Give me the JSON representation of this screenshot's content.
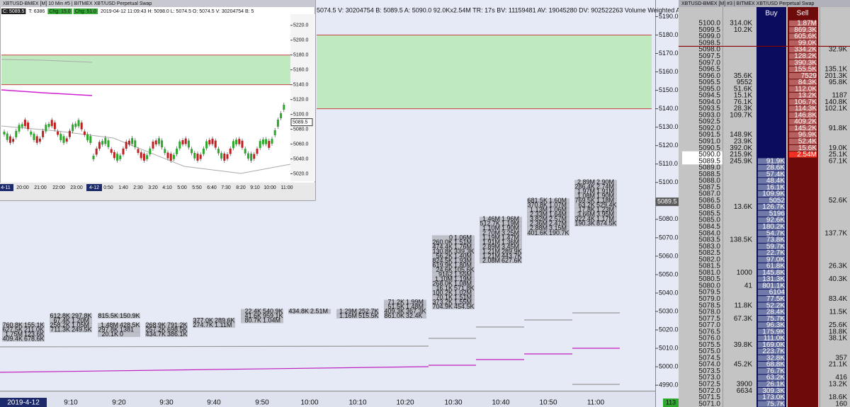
{
  "main": {
    "header": "5074.5 V: 30204754 B: 5089.5 A: 5090.0 92.0Kx2.54M TR: 17s BV: 11159481 AV: 19045280 DV: 902522263 Volume Weighted A",
    "ylim": [
      4987,
      5199
    ],
    "price_ticks": [
      {
        "value": 5190,
        "label": "5190.0"
      },
      {
        "value": 5180,
        "label": "5180.0"
      },
      {
        "value": 5170,
        "label": "5170.0"
      },
      {
        "value": 5160,
        "label": "5160.0"
      },
      {
        "value": 5150,
        "label": "5150.0"
      },
      {
        "value": 5140,
        "label": "5140.0"
      },
      {
        "value": 5130,
        "label": "5130.0"
      },
      {
        "value": 5120,
        "label": "5120.0"
      },
      {
        "value": 5110,
        "label": "5110.0"
      },
      {
        "value": 5100,
        "label": "5100.0"
      },
      {
        "value": 5090,
        "label": "5090.0"
      },
      {
        "value": 5080,
        "label": "5080.0"
      },
      {
        "value": 5070,
        "label": "5070.0"
      },
      {
        "value": 5060,
        "label": "5060.0"
      },
      {
        "value": 5050,
        "label": "5050.0"
      },
      {
        "value": 5040,
        "label": "5040.0"
      },
      {
        "value": 5030,
        "label": "5030.0"
      },
      {
        "value": 5020,
        "label": "5020.0"
      },
      {
        "value": 5010,
        "label": "5010.0"
      },
      {
        "value": 5000,
        "label": "5000.0"
      },
      {
        "value": 4990,
        "label": "4990.0"
      }
    ],
    "last_price": {
      "value": 5089.5,
      "label": "5089.5"
    },
    "zone": [
      5140,
      5180
    ],
    "times": [
      "2019-4-12",
      "9:10",
      "9:20",
      "9:30",
      "9:40",
      "9:50",
      "10:00",
      "10:10",
      "10:20",
      "10:30",
      "10:40",
      "10:50",
      "11:00"
    ],
    "bar_count": "113",
    "footprint": [
      [
        [
          5022.5,
          "760.8K",
          "155.1K"
        ],
        [
          5020,
          "627.5K",
          "211.0K"
        ],
        [
          5017.5,
          "1.75M",
          "123.6K"
        ],
        [
          5015,
          "409.4K",
          "678.6K"
        ]
      ],
      [
        [
          5027.5,
          "612.8K",
          "297.8K"
        ],
        [
          5025,
          "67.4K",
          "1.20M"
        ],
        [
          5022.5,
          "258.2K",
          "1.05M"
        ],
        [
          5020,
          "711.3K",
          "249.5K"
        ]
      ],
      [
        [
          5027.5,
          "815.5K",
          "150.9K"
        ],
        [
          5022.5,
          "1.48M",
          "428.5K"
        ],
        [
          5020,
          "297.8K",
          "1381"
        ],
        [
          5017.5,
          "20.1K",
          "0"
        ]
      ],
      [
        [
          5022.5,
          "268.9K",
          "791.2K"
        ],
        [
          5020,
          "257.2K",
          "698.5K"
        ],
        [
          5017.5,
          "434.7K",
          "386.1K"
        ]
      ],
      [
        [
          5025,
          "377.0K",
          "289.6K"
        ],
        [
          5022.5,
          "274.7K",
          "1.11M"
        ]
      ],
      [
        [
          5030,
          "22.4K",
          "540.9K"
        ],
        [
          5027.5,
          "41.6K",
          "959.1K"
        ],
        [
          5025,
          "80.7K",
          "1.04M"
        ]
      ],
      [
        [
          5030,
          "434.8K",
          "2.51M"
        ]
      ],
      [
        [
          5030,
          "1.29M",
          "252.7K"
        ],
        [
          5027.5,
          "1.16M",
          "515.5K"
        ]
      ],
      [
        [
          5035,
          "71.2K",
          "1.99M"
        ],
        [
          5032.5,
          "51.5K",
          "1.48M"
        ],
        [
          5030,
          "409.3K",
          "367.3K"
        ],
        [
          5027.5,
          "861.0K",
          "32.4K"
        ]
      ],
      [
        [
          5070,
          "0",
          "1.06M"
        ],
        [
          5067.5,
          "260.0K",
          "1.51M"
        ],
        [
          5065,
          "474.4K",
          "1.76M"
        ],
        [
          5062.5,
          "130.8K",
          "339.3K"
        ],
        [
          5060,
          "56.2K",
          "1.40M"
        ],
        [
          5057.5,
          "824.5K",
          "1.93M"
        ],
        [
          5055,
          "619.9K",
          "1.80M"
        ],
        [
          5052.5,
          "24.6K",
          "105.6K"
        ],
        [
          5050,
          "9162",
          "1.55M"
        ],
        [
          5047.5,
          "1.10M",
          "1.19M"
        ],
        [
          5045,
          "268.0K",
          "1.08M"
        ],
        [
          5042.5,
          "16.1K",
          "571.8K"
        ],
        [
          5040,
          "100.2K",
          "1.02M"
        ],
        [
          5037.5,
          "70.1K",
          "1.51M"
        ],
        [
          5035,
          "373.2K",
          "1.55M"
        ],
        [
          5032.5,
          "704.9K",
          "454.5K"
        ]
      ],
      [
        [
          5080,
          "1.46M",
          "1.96M"
        ],
        [
          5077.5,
          "512.7K",
          "1.19M"
        ],
        [
          5075,
          "1.10M",
          "1.90M"
        ],
        [
          5072.5,
          "2.70M",
          "3.25M"
        ],
        [
          5070,
          "1.19M",
          "1.47M"
        ],
        [
          5067.5,
          "1.91M",
          "1.36M"
        ],
        [
          5065,
          "2.89M",
          "3.45M"
        ],
        [
          5062.5,
          "1.21M",
          "289.9K"
        ],
        [
          5060,
          "1.21M",
          "443.7K"
        ],
        [
          5057.5,
          "2.08M",
          "627.6K"
        ]
      ],
      [
        [
          5090,
          "681.5K",
          "1.60M"
        ],
        [
          5087.5,
          "370.8K",
          "1.07M"
        ],
        [
          5085,
          "1.13M",
          "1.06M"
        ],
        [
          5082.5,
          "2.33M",
          "1.64M"
        ],
        [
          5080,
          "3.82M",
          "2.57M"
        ],
        [
          5077.5,
          "2.36M",
          "2.47M"
        ],
        [
          5075,
          "2.88M",
          "3.15M"
        ],
        [
          5072.5,
          "401.6K",
          "190.7K"
        ]
      ],
      [
        [
          5100,
          "2.89M",
          "2.90M"
        ],
        [
          5097.5,
          "286.4K",
          "2.74M"
        ],
        [
          5095,
          "1.97M",
          "1.91M"
        ],
        [
          5092.5,
          "1.08M",
          "1.90M"
        ],
        [
          5090,
          "769.5K",
          "1.18M"
        ],
        [
          5087.5,
          "63.2K",
          "529.4K"
        ],
        [
          5085,
          "17.8K",
          "1.23M"
        ],
        [
          5082.5,
          "3.66M",
          "3.95M"
        ],
        [
          5080,
          "322.4K",
          "1.17M"
        ],
        [
          5077.5,
          "190.3K",
          "874.5K"
        ]
      ]
    ]
  },
  "inset": {
    "title": "XBTUSD-BMEX [M]  10 Min  #5 | BITMEX XBT/USD Perpetual Swap",
    "stats": [
      "C: 5089.5",
      "T: 6386",
      "Chg: 15.0",
      "Chg: 51.0",
      "2019-04-12 11:09:43 H: 5098.0 L: 5074.5 O: 5074.5 V: 30204754 B: 5"
    ],
    "ylim": [
      5010,
      5235
    ],
    "price_ticks": [
      {
        "value": 5220,
        "label": "5220.0"
      },
      {
        "value": 5200,
        "label": "5200.0"
      },
      {
        "value": 5180,
        "label": "5180.0"
      },
      {
        "value": 5160,
        "label": "5160.0"
      },
      {
        "value": 5140,
        "label": "5140.0"
      },
      {
        "value": 5120,
        "label": "5120.0"
      },
      {
        "value": 5100,
        "label": "5100.0"
      },
      {
        "value": 5080,
        "label": "5080.0"
      },
      {
        "value": 5060,
        "label": "5060.0"
      },
      {
        "value": 5040,
        "label": "5040.0"
      },
      {
        "value": 5020,
        "label": "5020.0"
      }
    ],
    "last_price": {
      "value": 5089.5,
      "label": "5089.5"
    },
    "zone": [
      5140,
      5180
    ],
    "times": [
      "4-11",
      "20:00",
      "21:00",
      "22:00",
      "23:00",
      "4-12",
      "0:50",
      "1:40",
      "2:30",
      "3:20",
      "4:10",
      "5:00",
      "5:50",
      "6:40",
      "7:30",
      "8:20",
      "9:10",
      "10:00",
      "11:00"
    ]
  },
  "dom": {
    "title": "XBTUSD-BMEX [M]  #3 | BITMEX XBT/USD Perpetual Swap",
    "buy_header": "Buy",
    "sell_header": "Sell",
    "rows": [
      [
        "5100.0",
        "314.0K",
        null,
        "1.87M",
        null
      ],
      [
        "5099.5",
        "10.2K",
        null,
        "869.3K",
        null
      ],
      [
        "5099.0",
        null,
        null,
        "605.6K",
        null
      ],
      [
        "5098.5",
        null,
        null,
        "99.0K",
        null
      ],
      [
        "5098.0",
        null,
        null,
        "334.2K",
        "32.9K"
      ],
      [
        "5097.5",
        null,
        null,
        "128.2K",
        null
      ],
      [
        "5097.0",
        null,
        null,
        "390.3K",
        null
      ],
      [
        "5096.5",
        null,
        null,
        "155.5K",
        "135.1K"
      ],
      [
        "5096.0",
        "35.6K",
        null,
        "7529",
        "201.3K"
      ],
      [
        "5095.5",
        "9552",
        null,
        "84.3K",
        "95.8K"
      ],
      [
        "5095.0",
        "51.6K",
        null,
        "112.0K",
        null
      ],
      [
        "5094.5",
        "15.1K",
        null,
        "13.2K",
        "1187"
      ],
      [
        "5094.0",
        "76.1K",
        null,
        "106.7K",
        "140.8K"
      ],
      [
        "5093.5",
        "28.3K",
        null,
        "114.3K",
        "102.1K"
      ],
      [
        "5093.0",
        "109.7K",
        null,
        "146.8K",
        null
      ],
      [
        "5092.5",
        null,
        null,
        "409.2K",
        null
      ],
      [
        "5092.0",
        null,
        null,
        "145.2K",
        "91.8K"
      ],
      [
        "5091.5",
        "148.9K",
        null,
        "96.9K",
        null
      ],
      [
        "5091.0",
        "23.9K",
        null,
        "52.4K",
        null
      ],
      [
        "5090.5",
        "392.0K",
        null,
        "15.6K",
        "19.0K"
      ],
      [
        "5090.0",
        "215.9K",
        null,
        "2.54M",
        "25.1K"
      ],
      [
        "5089.5",
        "245.9K",
        "91.9K",
        null,
        "67.1K"
      ],
      [
        "5089.0",
        null,
        "28.6K",
        null,
        null
      ],
      [
        "5088.5",
        null,
        "57.4K",
        null,
        null
      ],
      [
        "5088.0",
        null,
        "48.4K",
        null,
        null
      ],
      [
        "5087.5",
        null,
        "16.1K",
        null,
        null
      ],
      [
        "5087.0",
        null,
        "109.9K",
        null,
        null
      ],
      [
        "5086.5",
        null,
        "5052",
        null,
        "52.6K"
      ],
      [
        "5086.0",
        "13.6K",
        "126.7K",
        null,
        null
      ],
      [
        "5085.5",
        null,
        "5196",
        null,
        null
      ],
      [
        "5085.0",
        null,
        "92.6K",
        null,
        null
      ],
      [
        "5084.5",
        null,
        "180.2K",
        null,
        null
      ],
      [
        "5084.0",
        null,
        "54.7K",
        null,
        "137.7K"
      ],
      [
        "5083.5",
        "138.5K",
        "73.8K",
        null,
        null
      ],
      [
        "5083.0",
        null,
        "59.7K",
        null,
        null
      ],
      [
        "5082.5",
        null,
        "22.7K",
        null,
        null
      ],
      [
        "5082.0",
        null,
        "97.0K",
        null,
        null
      ],
      [
        "5081.5",
        null,
        "61.8K",
        null,
        "26.3K"
      ],
      [
        "5081.0",
        "1000",
        "145.8K",
        null,
        null
      ],
      [
        "5080.5",
        null,
        "131.3K",
        null,
        "40.3K"
      ],
      [
        "5080.0",
        "41",
        "801.1K",
        null,
        null
      ],
      [
        "5079.5",
        null,
        "6104",
        null,
        null
      ],
      [
        "5079.0",
        null,
        "77.5K",
        null,
        "83.4K"
      ],
      [
        "5078.5",
        "11.8K",
        "52.2K",
        null,
        null
      ],
      [
        "5078.0",
        null,
        "28.4K",
        null,
        "11.5K"
      ],
      [
        "5077.5",
        "67.3K",
        "75.7K",
        null,
        null
      ],
      [
        "5077.0",
        null,
        "96.3K",
        null,
        "25.6K"
      ],
      [
        "5076.5",
        null,
        "175.9K",
        null,
        "18.8K"
      ],
      [
        "5076.0",
        null,
        "111.0K",
        null,
        "38.1K"
      ],
      [
        "5075.5",
        "39.8K",
        "169.0K",
        null,
        null
      ],
      [
        "5075.0",
        null,
        "223.7K",
        null,
        null
      ],
      [
        "5074.5",
        null,
        "32.8K",
        null,
        "357"
      ],
      [
        "5074.0",
        "45.2K",
        "68.8K",
        null,
        "21.1K"
      ],
      [
        "5073.5",
        null,
        "76.7K",
        null,
        null
      ],
      [
        "5073.0",
        null,
        "63.2K",
        null,
        "416"
      ],
      [
        "5072.5",
        "3900",
        "26.1K",
        null,
        "13.2K"
      ],
      [
        "5072.0",
        "6634",
        "309.3K",
        null,
        null
      ],
      [
        "5071.5",
        null,
        "173.0K",
        null,
        "18.6K"
      ],
      [
        "5071.0",
        null,
        "75.7K",
        null,
        "160"
      ]
    ]
  }
}
